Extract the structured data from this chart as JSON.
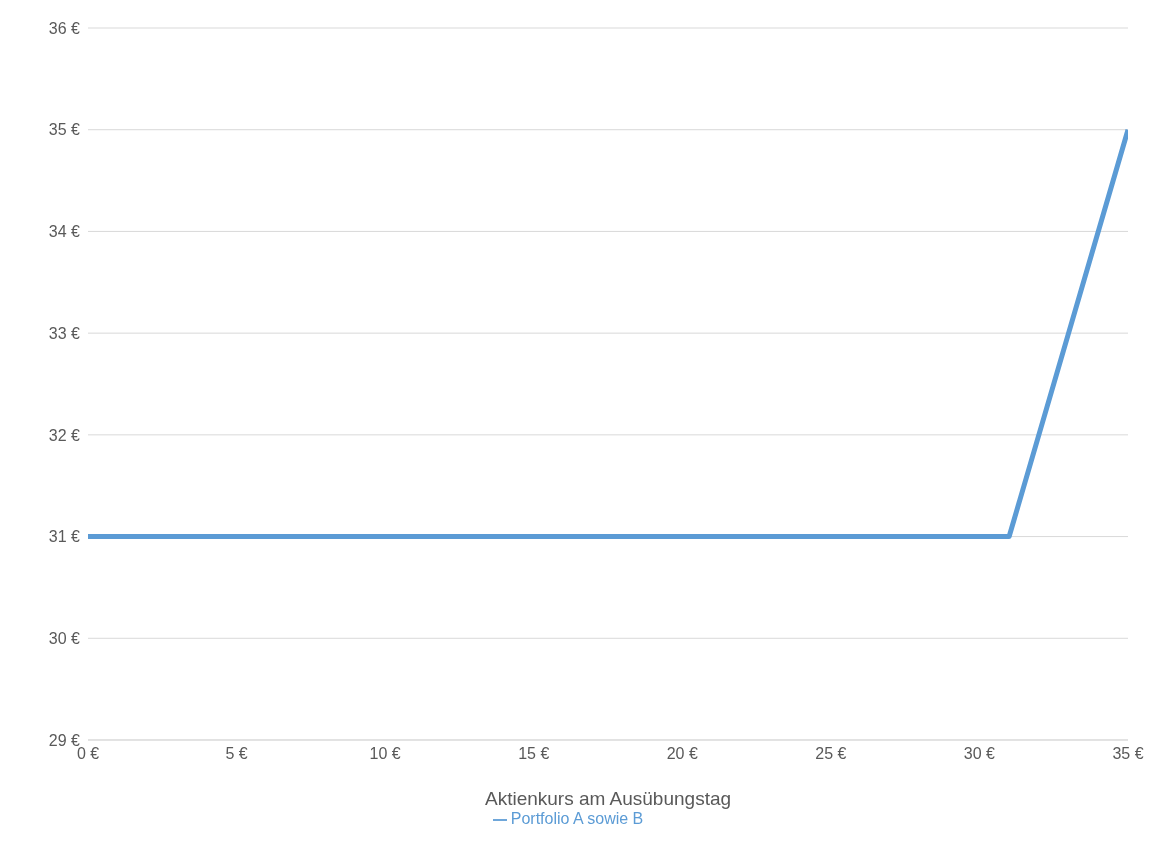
{
  "chart_data": {
    "type": "line",
    "xlabel": "Aktienkurs am Ausübungstag",
    "xlim": [
      0,
      35
    ],
    "xticks": [
      {
        "value": 0,
        "label": "0 €"
      },
      {
        "value": 5,
        "label": "5 €"
      },
      {
        "value": 10,
        "label": "10 €"
      },
      {
        "value": 15,
        "label": "15 €"
      },
      {
        "value": 20,
        "label": "20 €"
      },
      {
        "value": 25,
        "label": "25 €"
      },
      {
        "value": 30,
        "label": "30 €"
      },
      {
        "value": 35,
        "label": "35 €"
      }
    ],
    "ylim": [
      29,
      36
    ],
    "yticks": [
      {
        "value": 29,
        "label": "29 €"
      },
      {
        "value": 30,
        "label": "30 €"
      },
      {
        "value": 31,
        "label": "31 €"
      },
      {
        "value": 32,
        "label": "32 €"
      },
      {
        "value": 33,
        "label": "33 €"
      },
      {
        "value": 34,
        "label": "34 €"
      },
      {
        "value": 35,
        "label": "35 €"
      },
      {
        "value": 36,
        "label": "36 €"
      }
    ],
    "x": [
      0,
      31,
      35
    ],
    "series": [
      {
        "name": "Portfolio A sowie B",
        "color": "#5b9bd5",
        "values": [
          31,
          31,
          35
        ]
      }
    ],
    "grid": "y",
    "legend": "bottom",
    "marker": "none",
    "line_style": "solid"
  }
}
